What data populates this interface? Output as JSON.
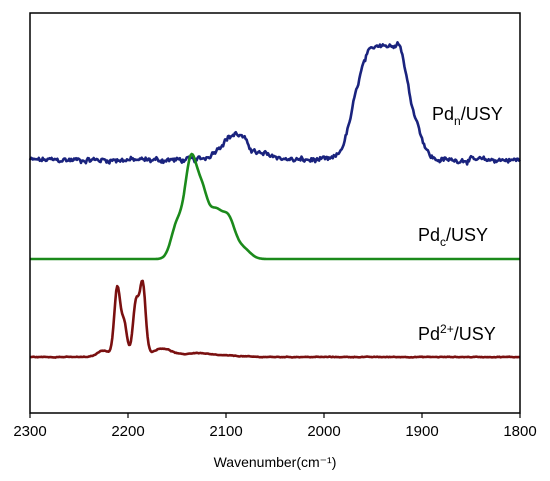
{
  "chart_data": {
    "type": "line",
    "xlabel": "Wavenumber(cm⁻¹)",
    "xlim": [
      2300,
      1800
    ],
    "x_reversed": true,
    "x_ticks": [
      "2300",
      "2200",
      "2100",
      "2000",
      "1900",
      "1800"
    ],
    "y_ticks_shown": false,
    "grid": false,
    "series": [
      {
        "name_main": "Pd",
        "name_sub": "n",
        "name_tail": "/USY",
        "color": "#1a237e",
        "baseline": 0.0,
        "noise": 0.035,
        "peaks": [
          {
            "x": 2097,
            "h": 0.14,
            "w": 12
          },
          {
            "x": 2084,
            "h": 0.1,
            "w": 9
          },
          {
            "x": 2058,
            "h": 0.04,
            "w": 10
          },
          {
            "x": 1950,
            "h": 0.62,
            "w": 11
          },
          {
            "x": 1935,
            "h": 0.52,
            "w": 9
          },
          {
            "x": 1922,
            "h": 0.6,
            "w": 7
          },
          {
            "x": 1908,
            "h": 0.28,
            "w": 8
          },
          {
            "x": 1965,
            "h": 0.35,
            "w": 10
          }
        ]
      },
      {
        "name_main": "Pd",
        "name_sub": "c",
        "name_tail": "/USY",
        "color": "#1b8a1b",
        "baseline": 0.0,
        "noise": 0.0,
        "peaks": [
          {
            "x": 2150,
            "h": 0.28,
            "w": 6
          },
          {
            "x": 2136,
            "h": 0.78,
            "w": 6
          },
          {
            "x": 2124,
            "h": 0.5,
            "w": 6
          },
          {
            "x": 2111,
            "h": 0.32,
            "w": 6
          },
          {
            "x": 2098,
            "h": 0.34,
            "w": 7
          },
          {
            "x": 2082,
            "h": 0.08,
            "w": 7
          }
        ]
      },
      {
        "name_main": "Pd",
        "name_sup": "2+",
        "name_tail": "/USY",
        "color": "#7a1010",
        "baseline": 0.0,
        "noise": 0.006,
        "peaks": [
          {
            "x": 2225,
            "h": 0.07,
            "w": 6
          },
          {
            "x": 2211,
            "h": 0.72,
            "w": 3
          },
          {
            "x": 2204,
            "h": 0.35,
            "w": 3
          },
          {
            "x": 2192,
            "h": 0.56,
            "w": 3
          },
          {
            "x": 2185,
            "h": 0.75,
            "w": 3
          },
          {
            "x": 2165,
            "h": 0.09,
            "w": 10
          },
          {
            "x": 2130,
            "h": 0.04,
            "w": 12
          },
          {
            "x": 2100,
            "h": 0.015,
            "w": 15
          }
        ]
      }
    ]
  }
}
